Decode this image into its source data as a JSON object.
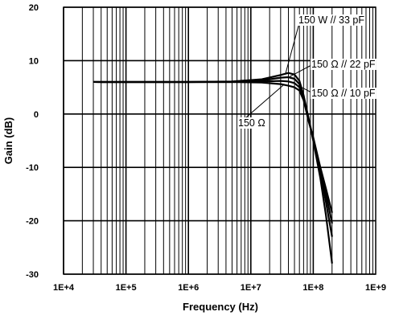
{
  "chart_data": {
    "type": "line",
    "title": "",
    "xlabel": "Frequency (Hz)",
    "ylabel": "Gain (dB)",
    "x_scale": "log",
    "xlim": [
      10000,
      1000000000
    ],
    "ylim": [
      -30,
      20
    ],
    "grid": true,
    "x_tick_labels": [
      "1E+4",
      "1E+5",
      "1E+6",
      "1E+7",
      "1E+8",
      "1E+9"
    ],
    "y_tick_labels": [
      "20",
      "10",
      "0",
      "-10",
      "-20",
      "-30"
    ],
    "annotations": [
      "150 W // 33 pF",
      "150 Ω // 22 pF",
      "150 Ω // 10 pF",
      "150 Ω"
    ],
    "series": [
      {
        "name": "150 W // 33 pF",
        "x": [
          1000000,
          5000000,
          15000000,
          30000000,
          40000000,
          50000000,
          60000000,
          70000000,
          85000000,
          100000000,
          130000000,
          160000000,
          200000000
        ],
        "values": [
          6,
          6.1,
          6.5,
          7.3,
          7.7,
          7.4,
          6.2,
          3.5,
          -1,
          -5,
          -12,
          -19,
          -28
        ]
      },
      {
        "name": "150 Ω // 22 pF",
        "x": [
          1000000,
          5000000,
          15000000,
          30000000,
          40000000,
          50000000,
          60000000,
          70000000,
          85000000,
          100000000,
          130000000,
          160000000,
          200000000
        ],
        "values": [
          6,
          6.05,
          6.3,
          6.8,
          6.9,
          6.6,
          5.6,
          3.2,
          -1.2,
          -4.8,
          -11,
          -16.5,
          -23
        ]
      },
      {
        "name": "150 Ω // 10 pF",
        "x": [
          1000000,
          5000000,
          15000000,
          30000000,
          40000000,
          50000000,
          60000000,
          70000000,
          85000000,
          100000000,
          130000000,
          160000000,
          200000000
        ],
        "values": [
          6,
          6,
          6.1,
          6.2,
          6.1,
          5.8,
          5,
          3,
          -1.3,
          -4.6,
          -10.5,
          -15,
          -20.5
        ]
      },
      {
        "name": "150 Ω",
        "x": [
          1000000,
          5000000,
          15000000,
          30000000,
          40000000,
          50000000,
          60000000,
          70000000,
          85000000,
          100000000,
          130000000,
          160000000,
          200000000
        ],
        "values": [
          6,
          6,
          5.9,
          5.6,
          5.3,
          5,
          4.4,
          2.6,
          -1.5,
          -4.4,
          -10,
          -14,
          -18.5
        ]
      }
    ]
  }
}
